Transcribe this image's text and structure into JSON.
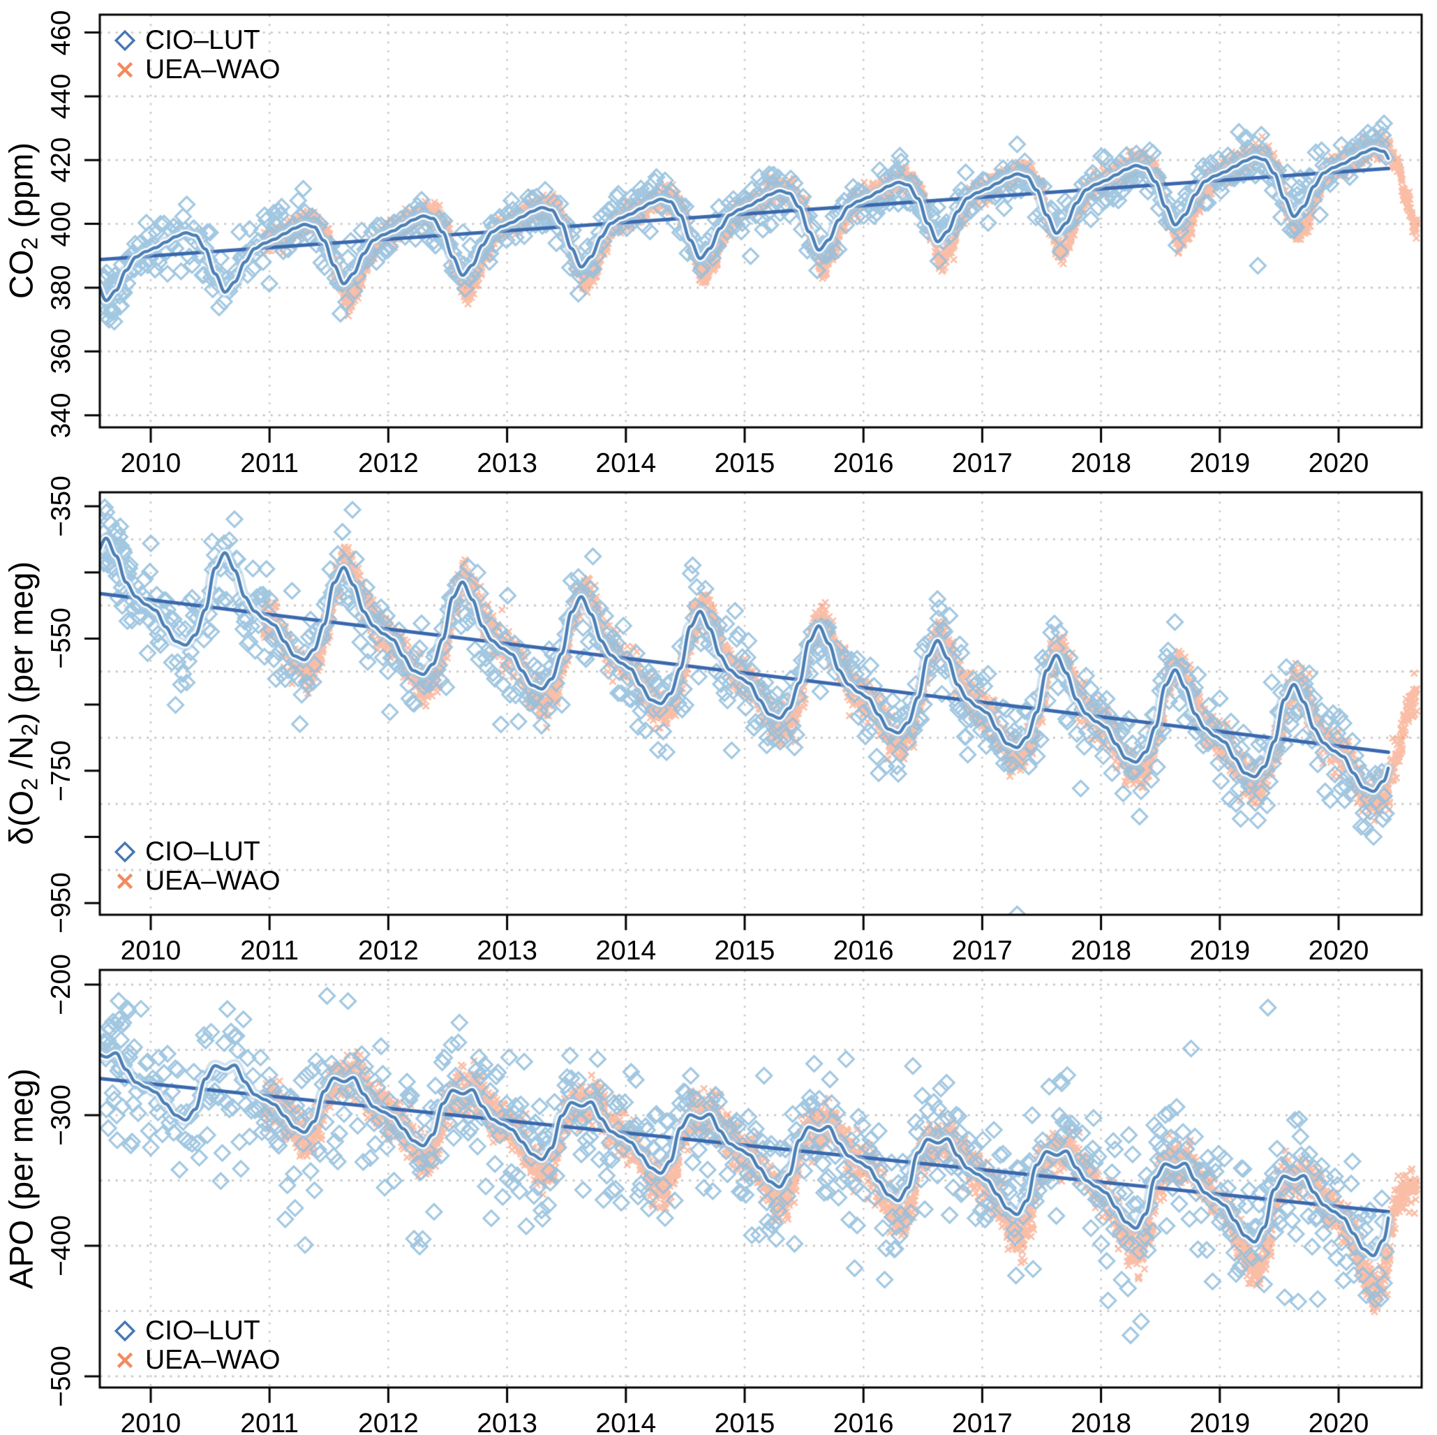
{
  "style": {
    "background": "#ffffff",
    "axis_color": "#000000",
    "grid_color": "#c9c9c9",
    "scatter_blue": "#94bfdd",
    "scatter_orange": "#f5865c",
    "legend_blue": "#4677b2",
    "legend_orange": "#f28a5e",
    "trend_color": "#3a68ae",
    "smooth_core": "#4c80b6",
    "smooth_casing": "#ffffff",
    "smooth_halo": "#a9cbe3"
  },
  "legend": {
    "items": [
      {
        "label": "CIO–LUT",
        "marker": "diamond",
        "color": "#4677b2"
      },
      {
        "label": "UEA–WAO",
        "marker": "x",
        "color": "#f28a5e"
      }
    ]
  },
  "x_axis": {
    "lim": [
      2009.57,
      2020.7
    ],
    "tick_years": [
      2010,
      2011,
      2012,
      2013,
      2014,
      2015,
      2016,
      2017,
      2018,
      2019,
      2020
    ],
    "tick_labels": [
      "2010",
      "2011",
      "2012",
      "2013",
      "2014",
      "2015",
      "2016",
      "2017",
      "2018",
      "2019",
      "2020"
    ]
  },
  "chart_data": [
    {
      "type": "scatter",
      "id": "co2",
      "ylabel_parts": [
        {
          "t": "CO"
        },
        {
          "t": "2",
          "sub": true
        },
        {
          "t": " (ppm)"
        }
      ],
      "xlabel": "",
      "ylim": [
        336.2,
        465.6
      ],
      "yticks": [
        {
          "v": 340,
          "label": "340"
        },
        {
          "v": 360,
          "label": "360"
        },
        {
          "v": 380,
          "label": "380"
        },
        {
          "v": 400,
          "label": "400"
        },
        {
          "v": 420,
          "label": "420"
        },
        {
          "v": 440,
          "label": "440"
        },
        {
          "v": 460,
          "label": "460"
        }
      ],
      "grid_y": [
        340,
        360,
        380,
        400,
        420,
        440,
        460
      ],
      "trend_line": {
        "x": [
          2009.57,
          2020.42
        ],
        "y": [
          388.8,
          417.4
        ]
      },
      "seasonal_monthly": [
        2.5,
        4.0,
        5.5,
        6.5,
        5.5,
        1.0,
        -7.0,
        -13.0,
        -10.0,
        -4.0,
        0.0,
        1.5
      ],
      "smooth_range": [
        2009.57,
        2020.42
      ],
      "series": [
        {
          "name": "CIO–LUT",
          "marker": "diamond",
          "range": [
            2009.6,
            2020.4
          ],
          "noise_sd": 3.8,
          "neg_skew": 1.1
        },
        {
          "name": "UEA–WAO",
          "marker": "x",
          "range": [
            2010.95,
            2020.66
          ],
          "noise_sd": 1.7,
          "lag_yr": 0.03,
          "amp_scale": 1.12,
          "trough_boost": {
            "base": -4,
            "per_year": 0,
            "from": 2011
          },
          "gaps": []
        }
      ]
    },
    {
      "type": "scatter",
      "id": "o2n2",
      "ylabel_parts": [
        {
          "t": "δ(O"
        },
        {
          "t": "2",
          "sub": true
        },
        {
          "t": " /N"
        },
        {
          "t": "2",
          "sub": true
        },
        {
          "t": ") (per meg)"
        }
      ],
      "xlabel": "",
      "ylim": [
        -967.7,
        -328.9
      ],
      "yticks": [
        {
          "v": -950,
          "label": "−950"
        },
        {
          "v": -850,
          "label": ""
        },
        {
          "v": -750,
          "label": "−750"
        },
        {
          "v": -650,
          "label": ""
        },
        {
          "v": -550,
          "label": "−550"
        },
        {
          "v": -450,
          "label": ""
        },
        {
          "v": -350,
          "label": "−350"
        }
      ],
      "grid_y": [
        -900,
        -800,
        -700,
        -600,
        -500,
        -400
      ],
      "trend_line": {
        "x": [
          2009.57,
          2020.42
        ],
        "y": [
          -482,
          -722
        ]
      },
      "seasonal_monthly": [
        -15,
        -38,
        -58,
        -62,
        -45,
        -5,
        60,
        85,
        60,
        22,
        2,
        -8
      ],
      "smooth_range": [
        2009.57,
        2020.42
      ],
      "series": [
        {
          "name": "CIO–LUT",
          "marker": "diamond",
          "range": [
            2009.6,
            2020.4
          ],
          "noise_sd": 31,
          "neg_skew": 1.25
        },
        {
          "name": "UEA–WAO",
          "marker": "x",
          "range": [
            2010.95,
            2020.66
          ],
          "noise_sd": 14,
          "lag_yr": 0.03,
          "amp_scale": 1.1,
          "trough_boost": {
            "base": -8,
            "per_year": 0,
            "from": 2011
          },
          "gaps": []
        }
      ]
    },
    {
      "type": "scatter",
      "id": "apo",
      "ylabel_parts": [
        {
          "t": "APO (per meg)"
        }
      ],
      "xlabel": "",
      "ylim": [
        -508.6,
        -188.8
      ],
      "yticks": [
        {
          "v": -500,
          "label": "−500"
        },
        {
          "v": -400,
          "label": "−400"
        },
        {
          "v": -300,
          "label": "−300"
        },
        {
          "v": -200,
          "label": "−200"
        }
      ],
      "grid_y": [
        -500,
        -450,
        -400,
        -350,
        -300,
        -250,
        -200
      ],
      "trend_line": {
        "x": [
          2009.57,
          2020.42
        ],
        "y": [
          -272,
          -374
        ]
      },
      "seasonal_monthly": [
        -6,
        -14,
        -22,
        -25,
        -16,
        8,
        19,
        17,
        21,
        9,
        0,
        -3
      ],
      "neg_amp_growth": {
        "per_year": 0.045,
        "from": 2011.5
      },
      "smooth_range": [
        2009.57,
        2020.42
      ],
      "series": [
        {
          "name": "CIO–LUT",
          "marker": "diamond",
          "range": [
            2009.6,
            2020.4
          ],
          "noise_sd": 25,
          "neg_skew": 1.3
        },
        {
          "name": "UEA–WAO",
          "marker": "x",
          "range": [
            2010.95,
            2020.66
          ],
          "noise_sd": 8,
          "lag_yr": 0.035,
          "amp_scale": 1.05,
          "trough_boost": {
            "base": -3,
            "per_year": -1.5,
            "from": 2011
          },
          "gaps": [
            [
              2018.97,
              2019.03
            ]
          ]
        }
      ]
    }
  ]
}
